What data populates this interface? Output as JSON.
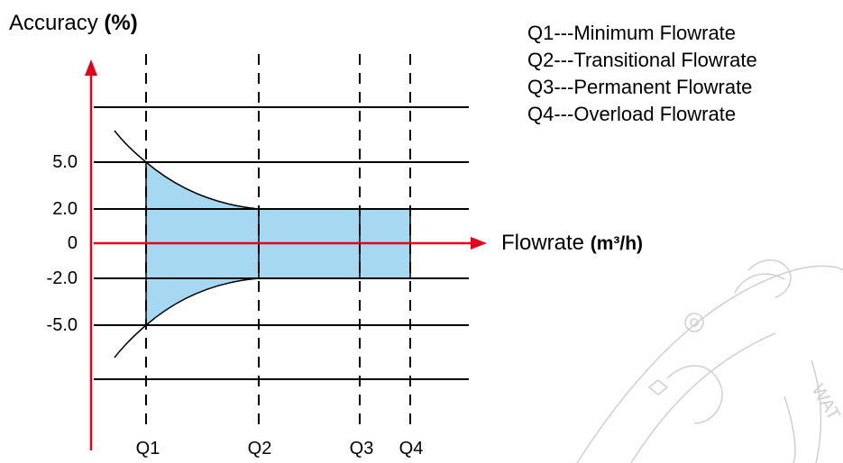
{
  "title": {
    "prefix": "Accuracy ",
    "unit": "(%)"
  },
  "x_axis": {
    "label": "Flowrate ",
    "unit": "(m³/h)"
  },
  "y_ticks": [
    "5.0",
    "2.0",
    "0",
    "-2.0",
    "-5.0"
  ],
  "x_ticks": [
    "Q1",
    "Q2",
    "Q3",
    "Q4"
  ],
  "legend": [
    "Q1---Minimum Flowrate",
    "Q2---Transitional Flowrate",
    "Q3---Permanent Flowrate",
    "Q4---Overload Flowrate"
  ],
  "colors": {
    "axis": "#e3001b",
    "band_fill": "#a6d8f2",
    "lines": "#000000",
    "watermark": "#d0d0d0"
  },
  "watermark_icon": "water-meter-watermark-icon"
}
